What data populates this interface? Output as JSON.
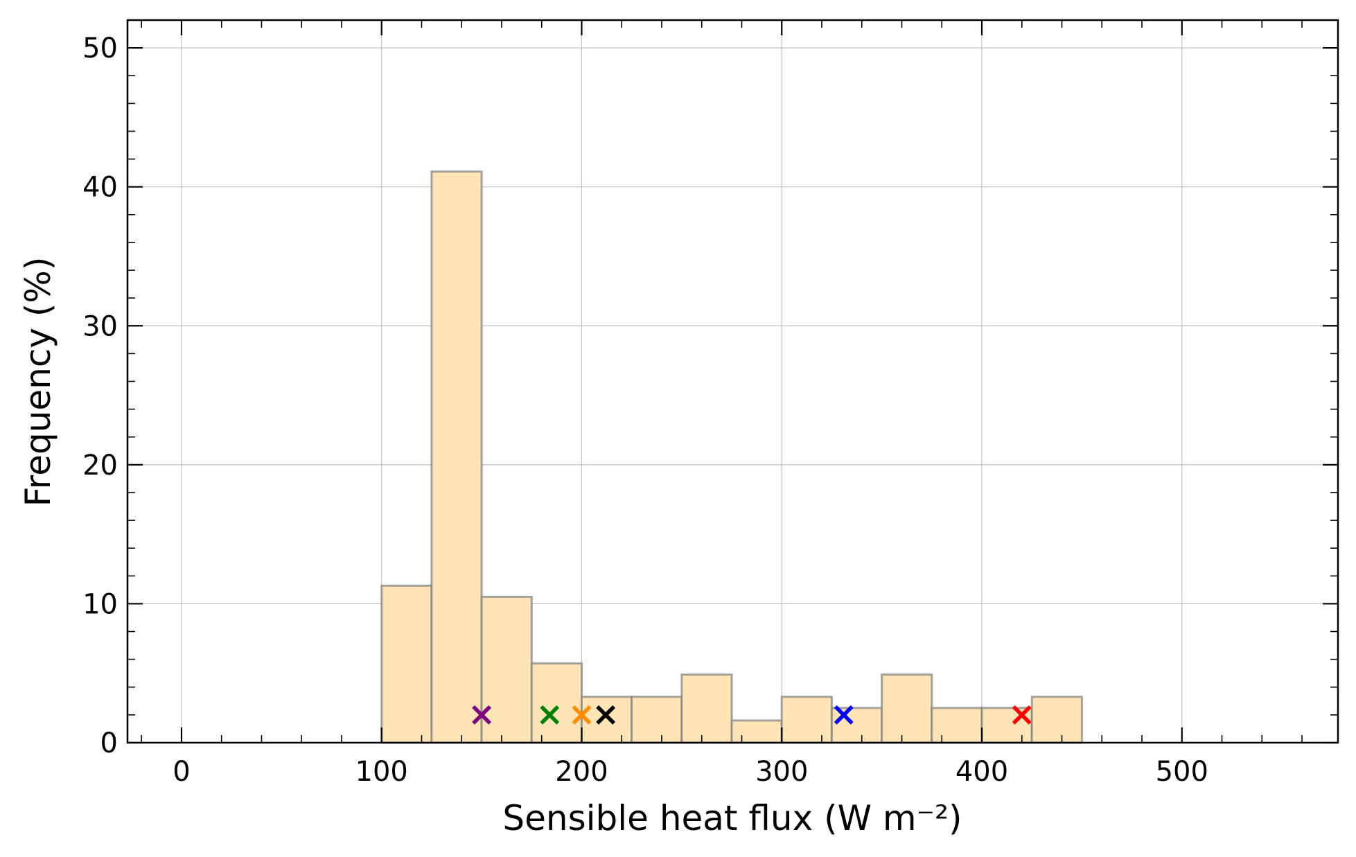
{
  "chart_data": {
    "type": "bar",
    "xlabel": "Sensible heat flux (W m⁻²)",
    "ylabel": "Frequency (%)",
    "xlim": [
      -27,
      578
    ],
    "ylim": [
      0,
      52
    ],
    "grid": true,
    "bar_color": "#ffe4b5",
    "bar_edge_color": "#7f7f7f",
    "x_ticks": [
      0,
      100,
      200,
      300,
      400,
      500
    ],
    "y_ticks": [
      0,
      10,
      20,
      30,
      40,
      50
    ],
    "bins": [
      {
        "start": 100,
        "end": 125,
        "value": 11.3
      },
      {
        "start": 125,
        "end": 150,
        "value": 41.1
      },
      {
        "start": 150,
        "end": 175,
        "value": 10.5
      },
      {
        "start": 175,
        "end": 200,
        "value": 5.7
      },
      {
        "start": 200,
        "end": 225,
        "value": 3.3
      },
      {
        "start": 225,
        "end": 250,
        "value": 3.3
      },
      {
        "start": 250,
        "end": 275,
        "value": 4.9
      },
      {
        "start": 275,
        "end": 300,
        "value": 1.6
      },
      {
        "start": 300,
        "end": 325,
        "value": 3.3
      },
      {
        "start": 325,
        "end": 350,
        "value": 2.5
      },
      {
        "start": 350,
        "end": 375,
        "value": 4.9
      },
      {
        "start": 375,
        "end": 400,
        "value": 2.5
      },
      {
        "start": 400,
        "end": 425,
        "value": 2.5
      },
      {
        "start": 425,
        "end": 450,
        "value": 3.3
      }
    ],
    "markers": [
      {
        "x": 150,
        "y": 2,
        "color": "#800080"
      },
      {
        "x": 184,
        "y": 2,
        "color": "#008000"
      },
      {
        "x": 200,
        "y": 2,
        "color": "#ff8c00"
      },
      {
        "x": 212,
        "y": 2,
        "color": "#000000"
      },
      {
        "x": 331,
        "y": 2,
        "color": "#0000ff"
      },
      {
        "x": 420,
        "y": 2,
        "color": "#ff0000"
      }
    ]
  }
}
